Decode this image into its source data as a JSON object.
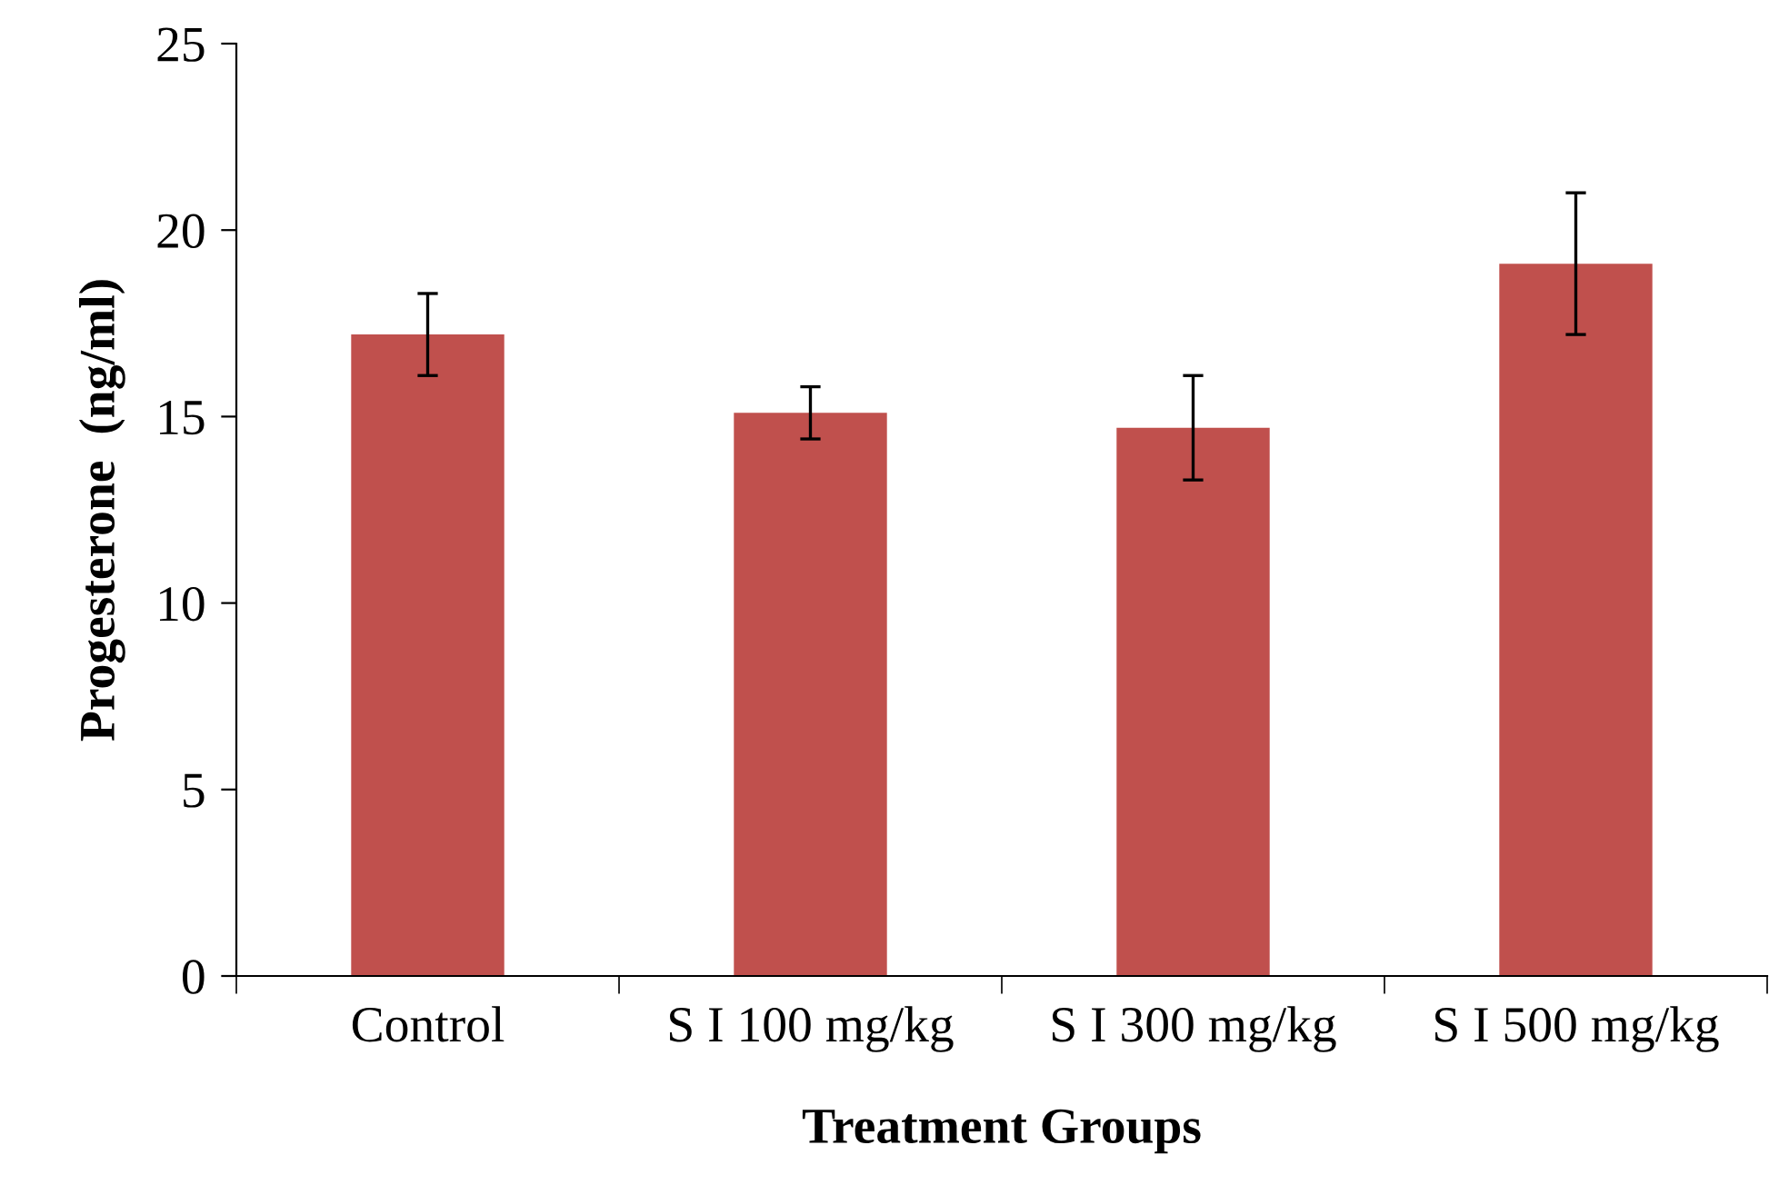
{
  "chart_data": {
    "type": "bar",
    "categories": [
      "Control",
      "S I 100 mg/kg",
      "S I 300 mg/kg",
      "S I 500 mg/kg"
    ],
    "values": [
      17.2,
      15.1,
      14.7,
      19.1
    ],
    "errors": [
      1.1,
      0.7,
      1.4,
      1.9
    ],
    "color": "#c0504d",
    "xlabel": "Treatment Groups",
    "ylabel": "Progesterone  (ng/ml)",
    "ylim": [
      0,
      25
    ],
    "yticks": [
      0,
      5,
      10,
      15,
      20,
      25
    ],
    "grid": false,
    "legend": false
  }
}
